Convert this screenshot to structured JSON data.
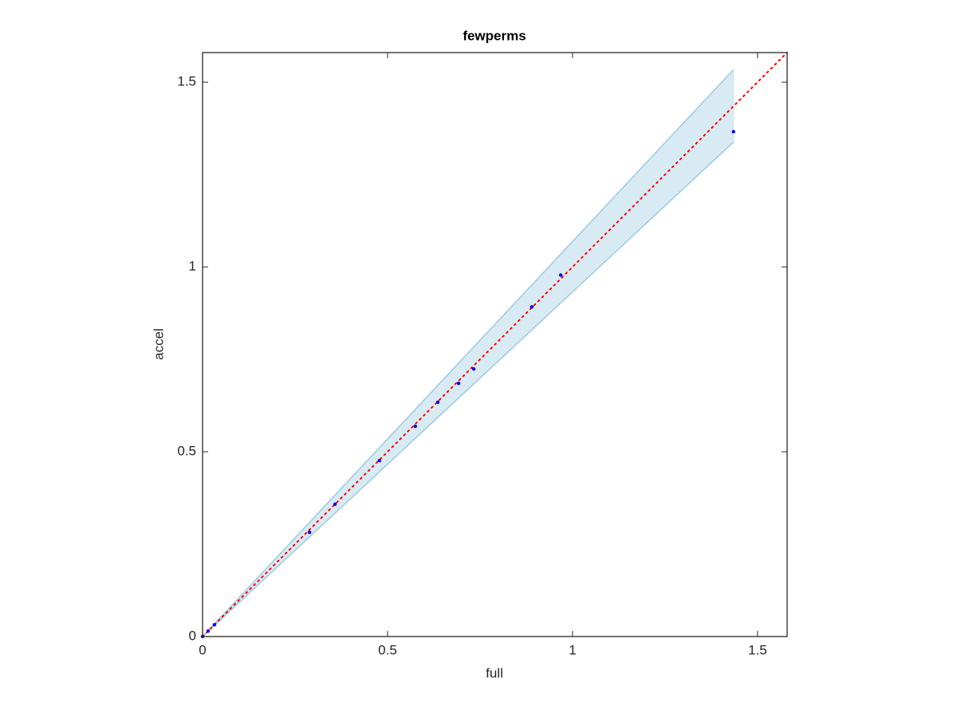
{
  "chart_data": {
    "type": "scatter",
    "title": "fewperms",
    "xlabel": "full",
    "ylabel": "accel",
    "xlim": [
      0,
      1.58
    ],
    "ylim": [
      0,
      1.58
    ],
    "xticks": [
      0,
      0.5,
      1,
      1.5
    ],
    "yticks": [
      0,
      0.5,
      1,
      1.5
    ],
    "band": {
      "color": "#9ecae1",
      "x": [
        0,
        1.435
      ],
      "lower": [
        0,
        1.338
      ],
      "upper": [
        0,
        1.534
      ]
    },
    "reference_line": {
      "color": "#ff0000",
      "x": [
        0,
        1.58
      ],
      "values": [
        0,
        1.58
      ]
    },
    "series": [
      {
        "color": "#0000ff",
        "x": [
          0,
          0.015,
          0.032,
          0.289,
          0.358,
          0.478,
          0.575,
          0.636,
          0.692,
          0.733,
          0.89,
          0.968,
          1.435
        ],
        "values": [
          0,
          0.015,
          0.032,
          0.282,
          0.358,
          0.476,
          0.569,
          0.634,
          0.685,
          0.724,
          0.892,
          0.978,
          1.366
        ]
      }
    ]
  }
}
